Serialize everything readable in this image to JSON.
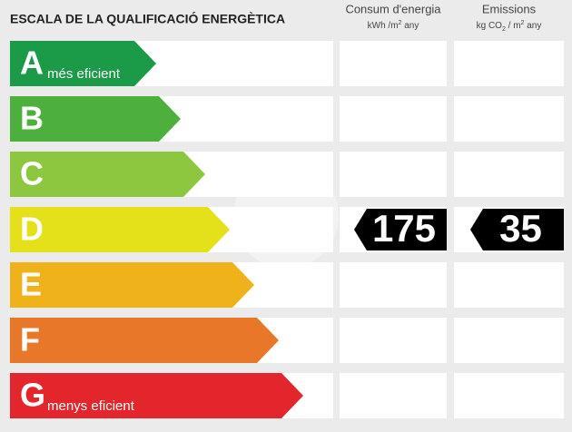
{
  "title": "ESCALA DE LA QUALIFICACIÓ ENERGÈTICA",
  "columns": [
    {
      "title": "Consum d'energia",
      "unit": [
        "kWh /m",
        "2",
        " any"
      ]
    },
    {
      "title": "Emissions",
      "unit": [
        "kg CO",
        "2",
        " / m",
        "2",
        " any"
      ]
    }
  ],
  "rows": [
    {
      "letter": "A",
      "label": "més eficient",
      "color": "#1b9a48"
    },
    {
      "letter": "B",
      "color": "#4daf3c"
    },
    {
      "letter": "C",
      "color": "#8dc63f"
    },
    {
      "letter": "D",
      "color": "#e4e11b",
      "values": [
        175,
        35
      ]
    },
    {
      "letter": "E",
      "color": "#efb21b"
    },
    {
      "letter": "F",
      "color": "#e8772a"
    },
    {
      "letter": "G",
      "label": "menys eficient",
      "color": "#e2262c"
    }
  ]
}
